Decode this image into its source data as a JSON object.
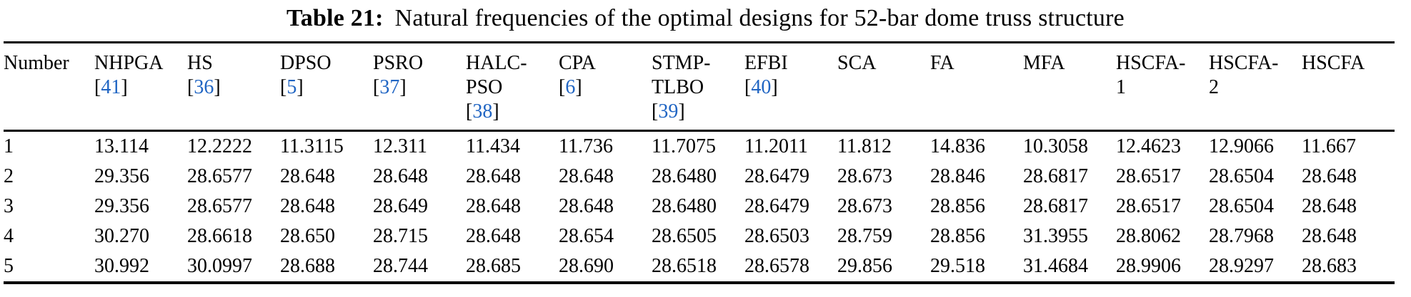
{
  "caption": {
    "label": "Table 21:",
    "text": "Natural frequencies of the optimal designs for 52-bar dome truss structure"
  },
  "accent_colors": {
    "citation_link_blue": "#2065c3",
    "text_black": "#000000"
  },
  "chart_data": {
    "type": "table",
    "title": "Table 21: Natural frequencies of the optimal designs for 52-bar dome truss structure",
    "columns": [
      {
        "lines": [
          "Number"
        ],
        "ref": null
      },
      {
        "lines": [
          "NHPGA"
        ],
        "ref": "41"
      },
      {
        "lines": [
          "HS"
        ],
        "ref": "36"
      },
      {
        "lines": [
          "DPSO"
        ],
        "ref": "5"
      },
      {
        "lines": [
          "PSRO"
        ],
        "ref": "37"
      },
      {
        "lines": [
          "HALC-",
          "PSO"
        ],
        "ref": "38"
      },
      {
        "lines": [
          "CPA"
        ],
        "ref": "6"
      },
      {
        "lines": [
          "STMP-",
          "TLBO"
        ],
        "ref": "39"
      },
      {
        "lines": [
          "EFBI"
        ],
        "ref": "40"
      },
      {
        "lines": [
          "SCA"
        ],
        "ref": null
      },
      {
        "lines": [
          "FA"
        ],
        "ref": null
      },
      {
        "lines": [
          "MFA"
        ],
        "ref": null
      },
      {
        "lines": [
          "HSCFA-",
          "1"
        ],
        "ref": null
      },
      {
        "lines": [
          "HSCFA-",
          "2"
        ],
        "ref": null
      },
      {
        "lines": [
          "HSCFA"
        ],
        "ref": null
      }
    ],
    "rows": [
      [
        "1",
        "13.114",
        "12.2222",
        "11.3115",
        "12.311",
        "11.434",
        "11.736",
        "11.7075",
        "11.2011",
        "11.812",
        "14.836",
        "10.3058",
        "12.4623",
        "12.9066",
        "11.667"
      ],
      [
        "2",
        "29.356",
        "28.6577",
        "28.648",
        "28.648",
        "28.648",
        "28.648",
        "28.6480",
        "28.6479",
        "28.673",
        "28.846",
        "28.6817",
        "28.6517",
        "28.6504",
        "28.648"
      ],
      [
        "3",
        "29.356",
        "28.6577",
        "28.648",
        "28.649",
        "28.648",
        "28.648",
        "28.6480",
        "28.6479",
        "28.673",
        "28.856",
        "28.6817",
        "28.6517",
        "28.6504",
        "28.648"
      ],
      [
        "4",
        "30.270",
        "28.6618",
        "28.650",
        "28.715",
        "28.648",
        "28.654",
        "28.6505",
        "28.6503",
        "28.759",
        "28.856",
        "31.3955",
        "28.8062",
        "28.7968",
        "28.648"
      ],
      [
        "5",
        "30.992",
        "30.0997",
        "28.688",
        "28.744",
        "28.685",
        "28.690",
        "28.6518",
        "28.6578",
        "29.856",
        "29.518",
        "31.4684",
        "28.9906",
        "28.9297",
        "28.683"
      ]
    ],
    "ref_bracket_open": "[",
    "ref_bracket_close": "]"
  }
}
